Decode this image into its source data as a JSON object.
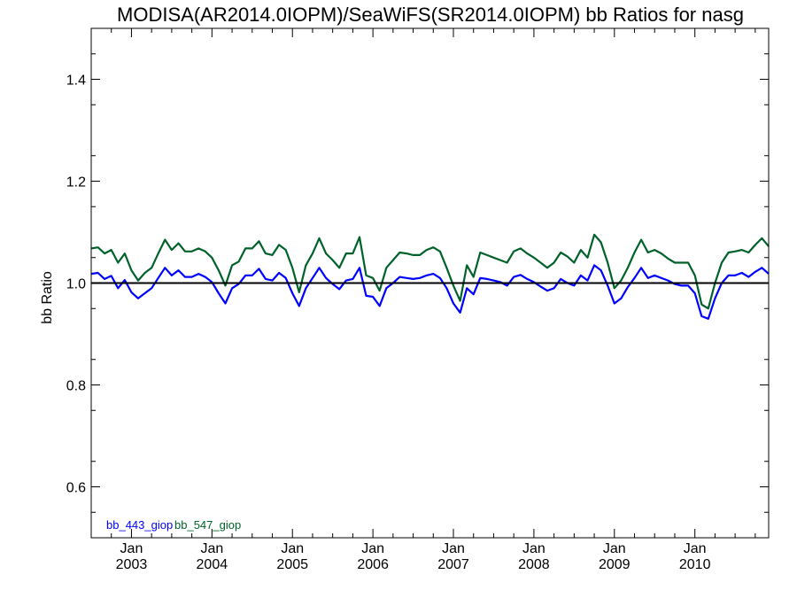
{
  "chart_data": {
    "type": "line",
    "title": "MODISA(AR2014.0IOPM)/SeaWiFS(SR2014.0IOPM)  bb Ratios for nasg",
    "xlabel": "",
    "ylabel": "bb Ratio",
    "ylim": [
      0.5,
      1.5
    ],
    "yticks": [
      "0.6",
      "0.8",
      "1.0",
      "1.2",
      "1.4"
    ],
    "xticks": [
      {
        "month": "Jan",
        "year": "2003"
      },
      {
        "month": "Jan",
        "year": "2004"
      },
      {
        "month": "Jan",
        "year": "2005"
      },
      {
        "month": "Jan",
        "year": "2006"
      },
      {
        "month": "Jan",
        "year": "2007"
      },
      {
        "month": "Jan",
        "year": "2008"
      },
      {
        "month": "Jan",
        "year": "2009"
      },
      {
        "month": "Jan",
        "year": "2010"
      }
    ],
    "xlim": [
      "2002-07",
      "2010-12"
    ],
    "x_start": "2002-07",
    "x_step": "1 month",
    "reference_line": 1.0,
    "grid": false,
    "legend_position": "bottom-left",
    "series": [
      {
        "name": "bb_443_giop",
        "color": "#0000ff",
        "values": [
          1.018,
          1.02,
          1.008,
          1.014,
          0.99,
          1.006,
          0.982,
          0.97,
          0.98,
          0.99,
          1.01,
          1.03,
          1.015,
          1.025,
          1.012,
          1.012,
          1.018,
          1.012,
          1.002,
          0.98,
          0.96,
          0.99,
          0.998,
          1.015,
          1.015,
          1.028,
          1.008,
          1.005,
          1.02,
          1.01,
          0.98,
          0.955,
          0.99,
          1.01,
          1.03,
          1.01,
          0.998,
          0.988,
          1.005,
          1.008,
          1.03,
          0.975,
          0.973,
          0.955,
          0.99,
          1.0,
          1.012,
          1.01,
          1.008,
          1.01,
          1.015,
          1.018,
          1.01,
          0.99,
          0.96,
          0.942,
          0.99,
          0.978,
          1.01,
          1.008,
          1.005,
          1.002,
          0.995,
          1.012,
          1.016,
          1.008,
          1.002,
          0.993,
          0.985,
          0.99,
          1.008,
          1.0,
          0.995,
          1.015,
          1.005,
          1.035,
          1.025,
          0.995,
          0.96,
          0.97,
          0.992,
          1.01,
          1.03,
          1.01,
          1.015,
          1.01,
          1.005,
          0.998,
          0.995,
          0.995,
          0.98,
          0.935,
          0.93,
          0.97,
          1.0,
          1.015,
          1.015,
          1.02,
          1.012,
          1.022,
          1.03,
          1.018
        ]
      },
      {
        "name": "bb_547_giop",
        "color": "#00622a",
        "values": [
          1.068,
          1.07,
          1.058,
          1.065,
          1.04,
          1.058,
          1.025,
          1.005,
          1.02,
          1.03,
          1.058,
          1.085,
          1.065,
          1.078,
          1.062,
          1.062,
          1.068,
          1.062,
          1.05,
          1.025,
          0.995,
          1.035,
          1.042,
          1.068,
          1.068,
          1.082,
          1.058,
          1.055,
          1.075,
          1.065,
          1.03,
          0.982,
          1.035,
          1.058,
          1.088,
          1.058,
          1.045,
          1.03,
          1.058,
          1.058,
          1.09,
          1.015,
          1.01,
          0.985,
          1.03,
          1.045,
          1.06,
          1.058,
          1.055,
          1.055,
          1.065,
          1.07,
          1.062,
          1.03,
          0.995,
          0.965,
          1.035,
          1.012,
          1.06,
          1.055,
          1.05,
          1.045,
          1.04,
          1.062,
          1.068,
          1.058,
          1.05,
          1.04,
          1.03,
          1.04,
          1.06,
          1.052,
          1.04,
          1.065,
          1.05,
          1.095,
          1.08,
          1.04,
          0.99,
          1.005,
          1.03,
          1.06,
          1.085,
          1.06,
          1.065,
          1.058,
          1.048,
          1.04,
          1.04,
          1.04,
          1.015,
          0.958,
          0.95,
          1.0,
          1.04,
          1.06,
          1.062,
          1.065,
          1.06,
          1.075,
          1.088,
          1.072
        ]
      }
    ]
  }
}
